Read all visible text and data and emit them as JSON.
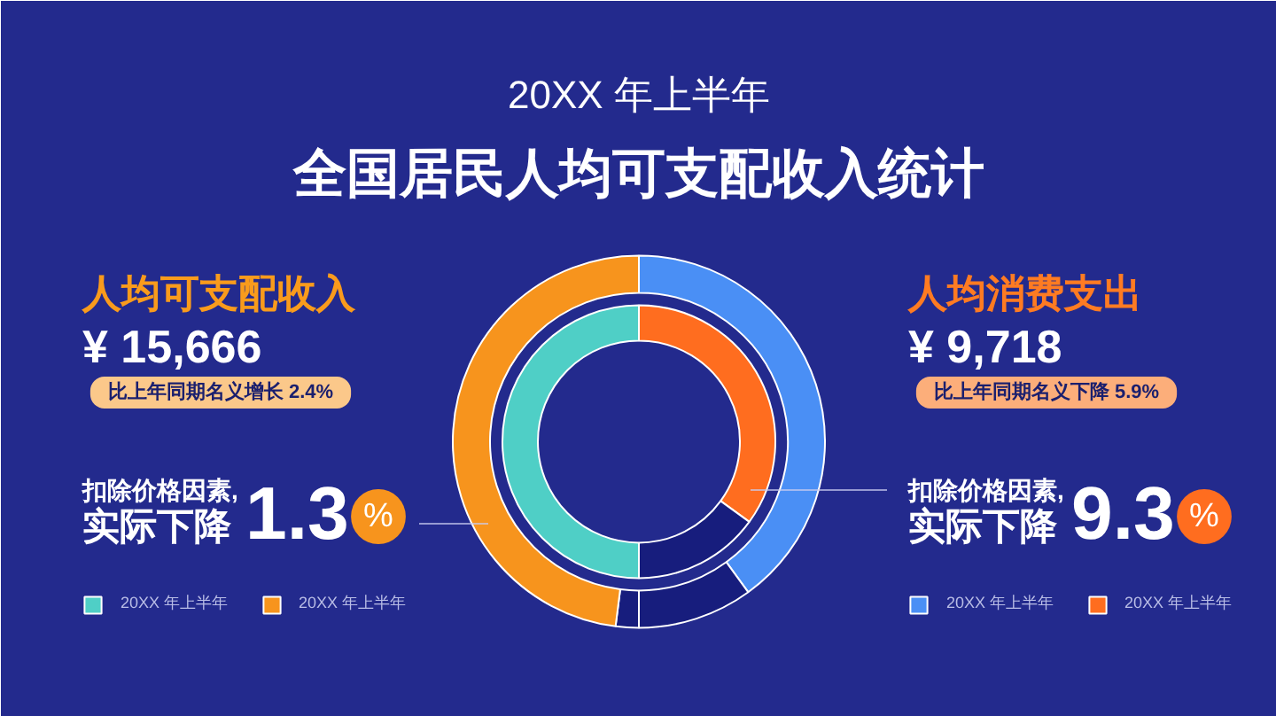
{
  "chart_data": {
    "type": "donut",
    "subtitle": "20XX 年上半年",
    "title": "全国居民人均可支配收入统计",
    "categories": [
      "20XX 年上半年",
      "20XX 年上半年",
      null,
      null,
      "20XX 年上半年",
      "20XX 年上半年"
    ],
    "colors": [
      "#4a8ff5",
      "#ff6d1f",
      "#171d7d",
      "#171d7d",
      "#4fcfc6",
      "#f7941d"
    ],
    "series": [
      {
        "values": [
          40,
          null,
          10,
          2,
          null,
          48
        ]
      },
      {
        "values": [
          null,
          35,
          15,
          null,
          50,
          null
        ]
      }
    ],
    "legend": "bottom",
    "annotations": [
      "人均可支配收入",
      "¥ 15,666",
      "比上年同期名义增长 2.4%",
      "扣除价格因素,",
      "实际下降",
      "1.3",
      "%",
      "人均消费支出",
      "¥ 9,718",
      "比上年同期名义下降 5.9%",
      "扣除价格因素,",
      "实际下降",
      "9.3",
      "%"
    ]
  }
}
